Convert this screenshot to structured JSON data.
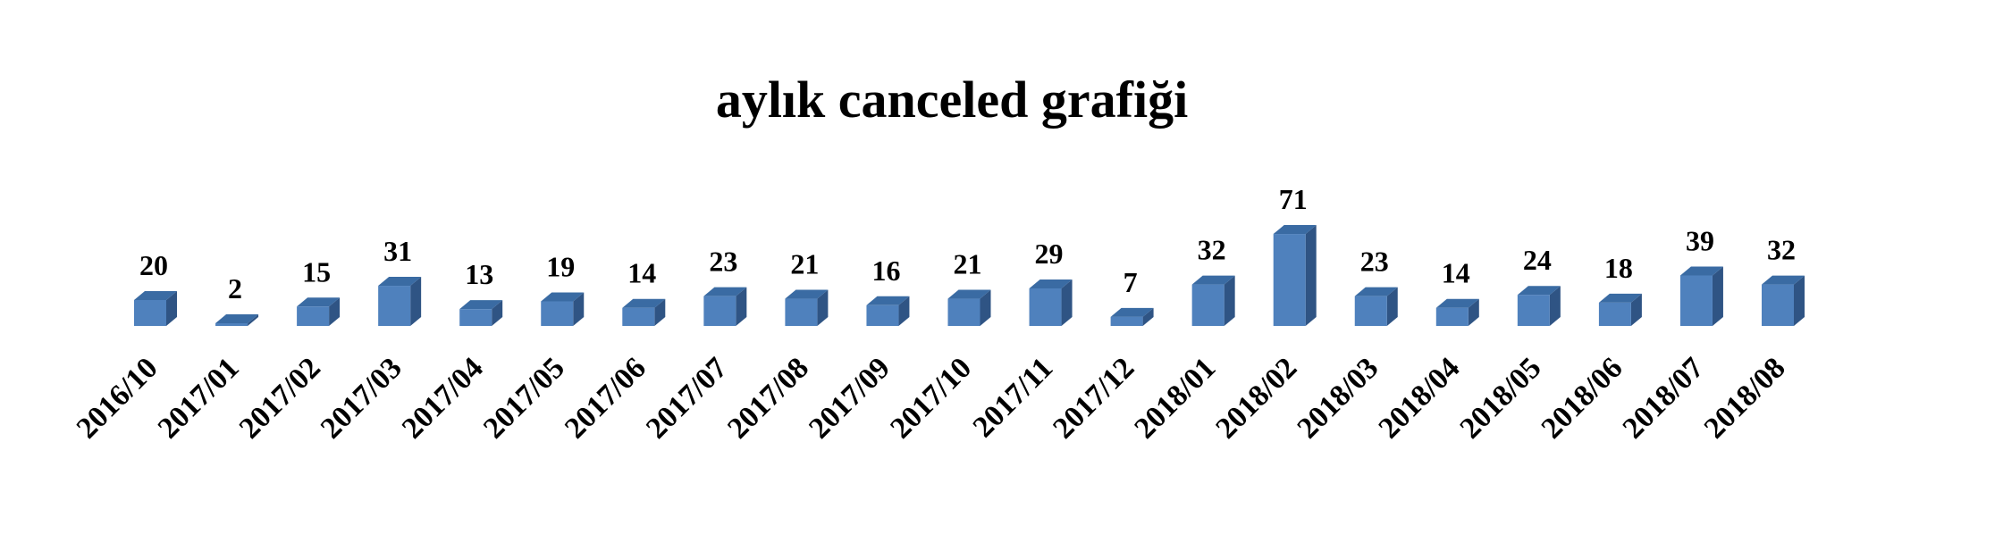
{
  "chart_data": {
    "type": "bar",
    "title": "aylık canceled grafiği",
    "xlabel": "",
    "ylabel": "",
    "categories": [
      "2016/10",
      "2017/01",
      "2017/02",
      "2017/03",
      "2017/04",
      "2017/05",
      "2017/06",
      "2017/07",
      "2017/08",
      "2017/09",
      "2017/10",
      "2017/11",
      "2017/12",
      "2018/01",
      "2018/02",
      "2018/03",
      "2018/04",
      "2018/05",
      "2018/06",
      "2018/07",
      "2018/08"
    ],
    "values": [
      20,
      2,
      15,
      31,
      13,
      19,
      14,
      23,
      21,
      16,
      21,
      29,
      7,
      32,
      71,
      23,
      14,
      24,
      18,
      39,
      32
    ],
    "ylim": [
      0,
      71
    ],
    "style": "3d-column",
    "grid": false,
    "legend": "none",
    "colors": {
      "front": "#4F81BD",
      "side": "#2F5484",
      "top": "#3A6BA3"
    }
  }
}
